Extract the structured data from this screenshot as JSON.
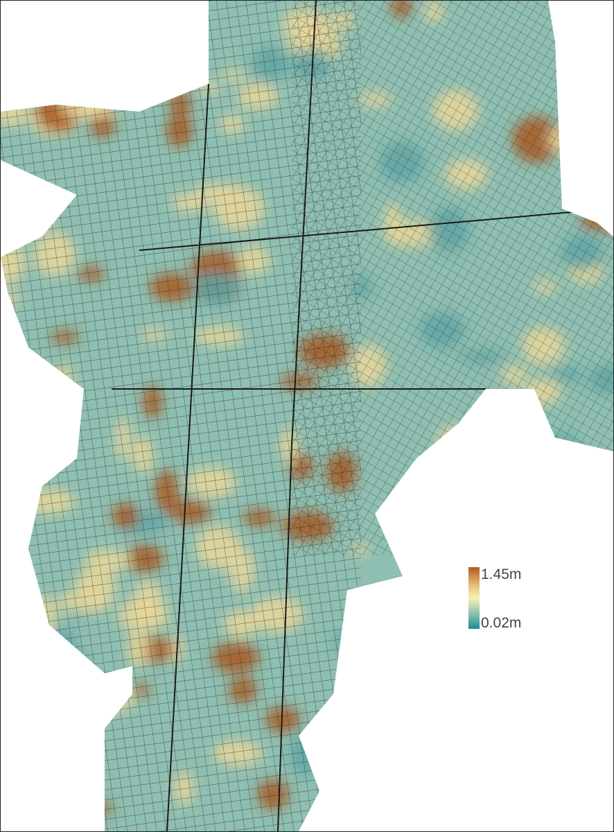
{
  "legend": {
    "max_label": "1.45m",
    "min_label": "0.02m",
    "colors": [
      "#b45a1e",
      "#e8c07a",
      "#f7f3b4",
      "#8cc3ae",
      "#1b8c92"
    ]
  },
  "map": {
    "base_color": "#8ebfb2",
    "high_color": "#a8571f",
    "mid_color": "#ead79a",
    "street_color": "#2a2a2a"
  }
}
